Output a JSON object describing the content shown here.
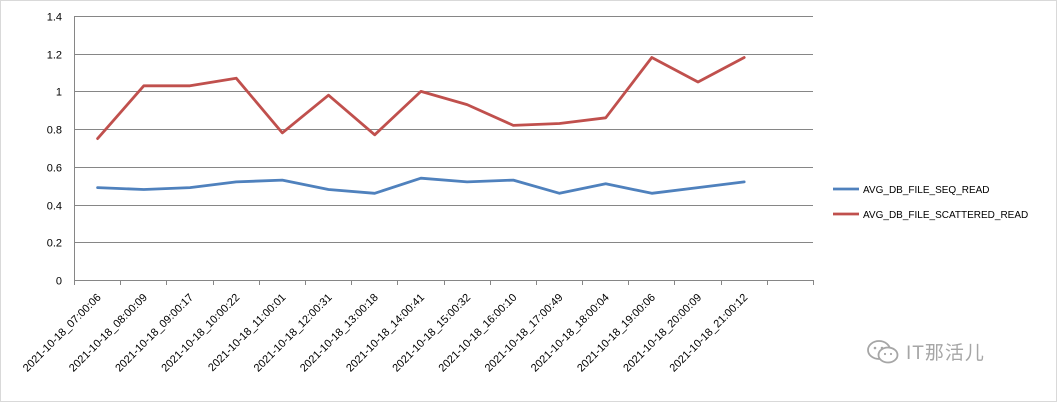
{
  "chart_data": {
    "type": "line",
    "categories": [
      "2021-10-18_07:00:06",
      "2021-10-18_08:00:09",
      "2021-10-18_09:00:17",
      "2021-10-18_10:00:22",
      "2021-10-18_11:00:01",
      "2021-10-18_12:00:31",
      "2021-10-18_13:00:18",
      "2021-10-18_14:00:41",
      "2021-10-18_15:00:32",
      "2021-10-18_16:00:10",
      "2021-10-18_17:00:49",
      "2021-10-18_18:00:04",
      "2021-10-18_19:00:06",
      "2021-10-18_20:00:09",
      "2021-10-18_21:00:12"
    ],
    "series": [
      {
        "name": "AVG_DB_FILE_SEQ_READ",
        "color": "#4f81bd",
        "values": [
          0.49,
          0.48,
          0.49,
          0.52,
          0.53,
          0.48,
          0.46,
          0.54,
          0.52,
          0.53,
          0.46,
          0.51,
          0.46,
          0.49,
          0.52
        ]
      },
      {
        "name": "AVG_DB_FILE_SCATTERED_READ",
        "color": "#c0504d",
        "values": [
          0.75,
          1.03,
          1.03,
          1.07,
          0.78,
          0.98,
          0.77,
          1.0,
          0.93,
          0.82,
          0.83,
          0.86,
          1.18,
          1.05,
          1.18
        ]
      }
    ],
    "y_ticks": [
      "0",
      "0.2",
      "0.4",
      "0.6",
      "0.8",
      "1",
      "1.2",
      "1.4"
    ],
    "ylim": [
      0,
      1.4
    ],
    "grid": "horizontal",
    "legend_position": "right"
  },
  "watermark": {
    "icon": "wechat-icon",
    "text": "IT那活儿"
  }
}
